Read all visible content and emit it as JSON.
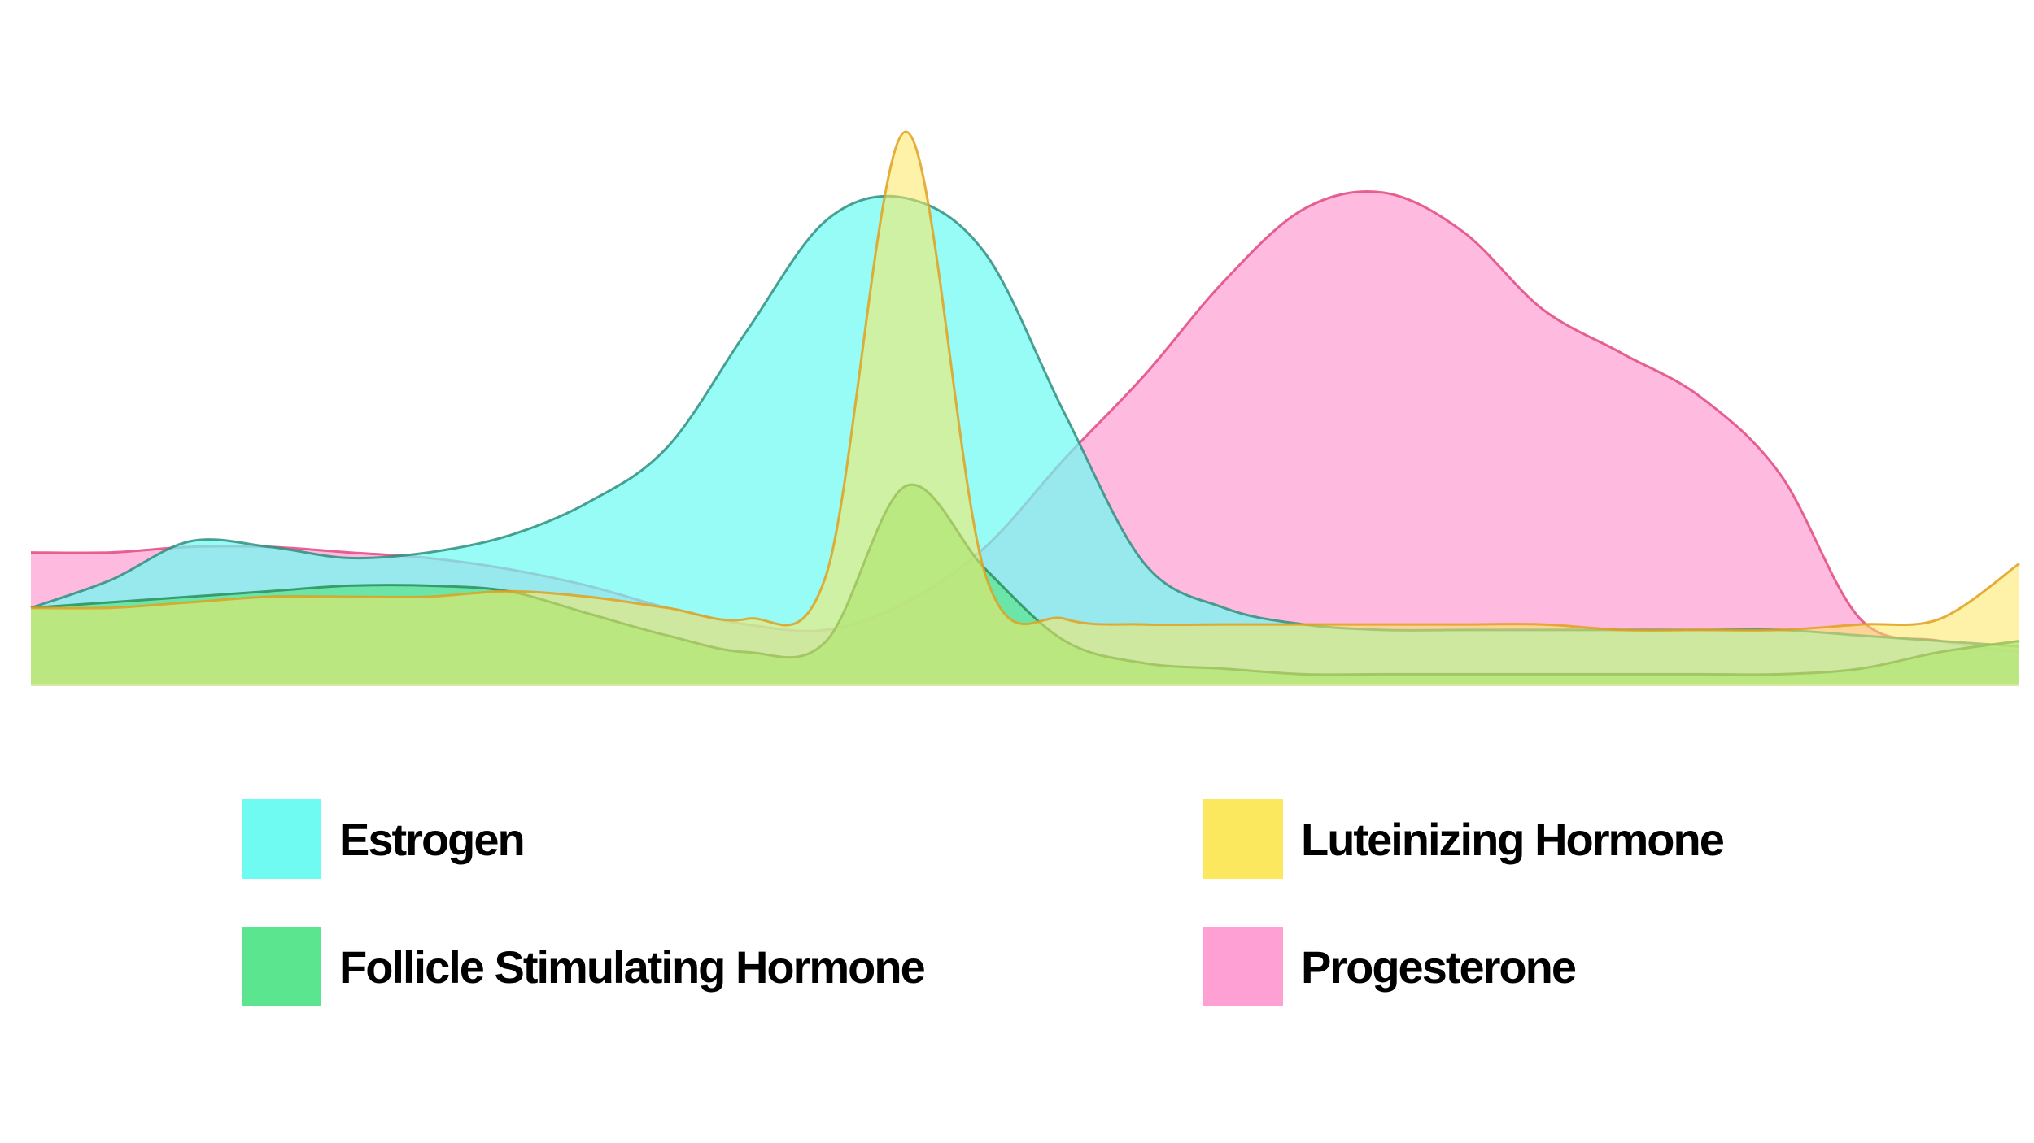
{
  "chart_data": {
    "type": "area",
    "title": "",
    "xlabel": "",
    "ylabel": "",
    "axes_visible": false,
    "grid": false,
    "legend_position": "bottom",
    "x": [
      0,
      4,
      8,
      12,
      16,
      20,
      24,
      28,
      32,
      36,
      40,
      44,
      48,
      52,
      56,
      60,
      64,
      68,
      72,
      76,
      80,
      84,
      88,
      92,
      96,
      100
    ],
    "ylim": [
      0,
      100
    ],
    "series": [
      {
        "name": "Estrogen",
        "color": "#6ffbf1",
        "stroke": "#2f8f7f",
        "values": [
          14,
          19,
          26,
          25,
          23,
          24,
          27,
          33,
          43,
          64,
          84,
          88,
          78,
          49,
          22,
          14,
          11,
          10,
          10,
          10,
          10,
          10,
          10,
          9,
          8,
          7
        ]
      },
      {
        "name": "Progesterone",
        "color": "#ffa0d4",
        "stroke": "#e2497f",
        "values": [
          24,
          24,
          25,
          25,
          24,
          23,
          21,
          18,
          14,
          11,
          10,
          15,
          25,
          41,
          56,
          73,
          86,
          89,
          82,
          68,
          60,
          52,
          38,
          12,
          8,
          6
        ]
      },
      {
        "name": "Follicle Stimulating Hormone",
        "color": "#5be58e",
        "stroke": "#2a8f5a",
        "values": [
          14,
          15,
          16,
          17,
          18,
          18,
          17,
          13,
          9,
          6,
          8,
          36,
          21,
          8,
          4,
          3,
          2,
          2,
          2,
          2,
          2,
          2,
          2,
          3,
          6,
          8
        ]
      },
      {
        "name": "Luteinizing Hormone",
        "color": "#fbe85f",
        "stroke": "#e0a020",
        "values": [
          14,
          14,
          15,
          16,
          16,
          16,
          17,
          16,
          14,
          12,
          20,
          100,
          20,
          12,
          11,
          11,
          11,
          11,
          11,
          11,
          10,
          10,
          10,
          11,
          12,
          22
        ]
      }
    ],
    "legend": [
      {
        "label": "Estrogen",
        "color": "#6ffbf1"
      },
      {
        "label": "Follicle Stimulating Hormone",
        "color": "#5be58e"
      },
      {
        "label": "Luteinizing Hormone",
        "color": "#fbe85f"
      },
      {
        "label": "Progesterone",
        "color": "#ffa0d4"
      }
    ]
  }
}
